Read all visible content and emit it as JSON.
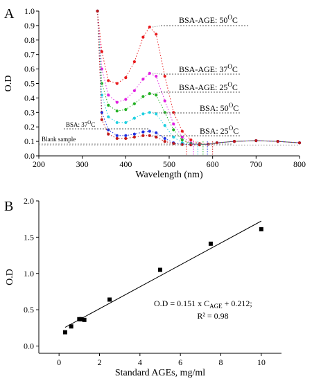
{
  "chart_data": [
    {
      "panel": "A",
      "type": "line",
      "xlabel": "Wavelength (nm)",
      "ylabel": "O.D",
      "xlim": [
        200,
        800
      ],
      "ylim": [
        0.0,
        1.0
      ],
      "xticks": [
        200,
        300,
        400,
        500,
        600,
        700,
        800
      ],
      "yticks": [
        0.0,
        0.1,
        0.2,
        0.3,
        0.4,
        0.5,
        0.6,
        0.7,
        0.8,
        0.9,
        1.0
      ],
      "series": [
        {
          "label": "BSA-AGE: 50",
          "sup": "O",
          "unit": "C",
          "color": "#e8191c",
          "x": [
            335,
            345,
            360,
            380,
            400,
            420,
            440,
            455,
            470,
            490,
            510,
            530,
            550,
            570,
            590,
            610,
            650,
            700,
            750,
            800
          ],
          "y": [
            1.0,
            0.72,
            0.52,
            0.5,
            0.54,
            0.65,
            0.82,
            0.89,
            0.84,
            0.55,
            0.3,
            0.17,
            0.11,
            0.085,
            0.08,
            0.09,
            0.1,
            0.105,
            0.1,
            0.09
          ]
        },
        {
          "label": "BSA-AGE: 37",
          "sup": "O",
          "unit": "C",
          "color": "#e020e0",
          "x": [
            335,
            345,
            360,
            380,
            400,
            420,
            440,
            455,
            470,
            490,
            510,
            530,
            550,
            570,
            590,
            610,
            650,
            700,
            750,
            800
          ],
          "y": [
            1.0,
            0.6,
            0.42,
            0.37,
            0.39,
            0.45,
            0.53,
            0.57,
            0.55,
            0.38,
            0.22,
            0.13,
            0.09,
            0.08,
            0.08,
            0.09,
            0.1,
            0.105,
            0.1,
            0.09
          ]
        },
        {
          "label": "BSA-AGE: 25",
          "sup": "O",
          "unit": "C",
          "color": "#22b022",
          "x": [
            335,
            345,
            360,
            380,
            400,
            420,
            440,
            455,
            470,
            490,
            510,
            530,
            550,
            570,
            590,
            610,
            650,
            700,
            750,
            800
          ],
          "y": [
            1.0,
            0.5,
            0.35,
            0.31,
            0.32,
            0.36,
            0.41,
            0.43,
            0.42,
            0.3,
            0.18,
            0.11,
            0.085,
            0.08,
            0.08,
            0.09,
            0.1,
            0.105,
            0.1,
            0.09
          ]
        },
        {
          "label": "BSA: 50",
          "sup": "O",
          "unit": "C",
          "color": "#1fd0e0",
          "x": [
            335,
            345,
            360,
            380,
            400,
            420,
            440,
            455,
            470,
            490,
            510,
            530,
            550,
            570,
            590,
            610,
            650,
            700,
            750,
            800
          ],
          "y": [
            1.0,
            0.42,
            0.27,
            0.23,
            0.23,
            0.26,
            0.29,
            0.3,
            0.29,
            0.21,
            0.13,
            0.09,
            0.08,
            0.078,
            0.08,
            0.09,
            0.1,
            0.105,
            0.1,
            0.09
          ]
        },
        {
          "label": "BSA: 37",
          "sup": "O",
          "unit": "C",
          "color": "#1e2ee0",
          "x": [
            335,
            345,
            360,
            380,
            400,
            420,
            440,
            455,
            470,
            490,
            510,
            530,
            550,
            570,
            590,
            610,
            650,
            700,
            750,
            800
          ],
          "y": [
            1.0,
            0.3,
            0.18,
            0.14,
            0.14,
            0.15,
            0.165,
            0.17,
            0.16,
            0.12,
            0.09,
            0.08,
            0.078,
            0.077,
            0.08,
            0.09,
            0.1,
            0.105,
            0.1,
            0.09
          ]
        },
        {
          "label": "BSA: 25",
          "sup": "O",
          "unit": "C",
          "color": "#c01818",
          "x": [
            335,
            345,
            360,
            380,
            400,
            420,
            440,
            455,
            470,
            490,
            510,
            530,
            550,
            570,
            590,
            610,
            650,
            700,
            750,
            800
          ],
          "y": [
            1.0,
            0.25,
            0.15,
            0.12,
            0.12,
            0.13,
            0.14,
            0.14,
            0.13,
            0.1,
            0.085,
            0.078,
            0.076,
            0.076,
            0.08,
            0.09,
            0.1,
            0.105,
            0.1,
            0.09
          ]
        },
        {
          "label": "Blank sample",
          "sup": "",
          "unit": "",
          "color": "#8a8a8a",
          "x": [
            200,
            300,
            400,
            500,
            600,
            700,
            800
          ],
          "y": [
            0.075,
            0.075,
            0.075,
            0.075,
            0.075,
            0.075,
            0.075
          ]
        }
      ]
    },
    {
      "panel": "B",
      "type": "scatter",
      "xlabel": "Standard AGEs, mg/ml",
      "ylabel": "O.D",
      "xlim": [
        -1,
        11
      ],
      "ylim": [
        -0.1,
        2.0
      ],
      "xticks": [
        0,
        2,
        4,
        6,
        8,
        10
      ],
      "yticks": [
        0.0,
        0.5,
        1.0,
        1.5,
        2.0
      ],
      "x": [
        0.3,
        0.6,
        1.0,
        1.1,
        1.25,
        2.5,
        5.0,
        7.5,
        10.0
      ],
      "y": [
        0.19,
        0.27,
        0.37,
        0.37,
        0.36,
        0.64,
        1.05,
        1.41,
        1.61
      ],
      "fit": {
        "slope": 0.151,
        "intercept": 0.212,
        "x_range": [
          0.3,
          10.0
        ]
      },
      "equation_prefix": "O.D = 0.151 x C",
      "equation_sub": "AGE",
      "equation_suffix": " + 0.212;",
      "r2": "R² = 0.98"
    }
  ]
}
